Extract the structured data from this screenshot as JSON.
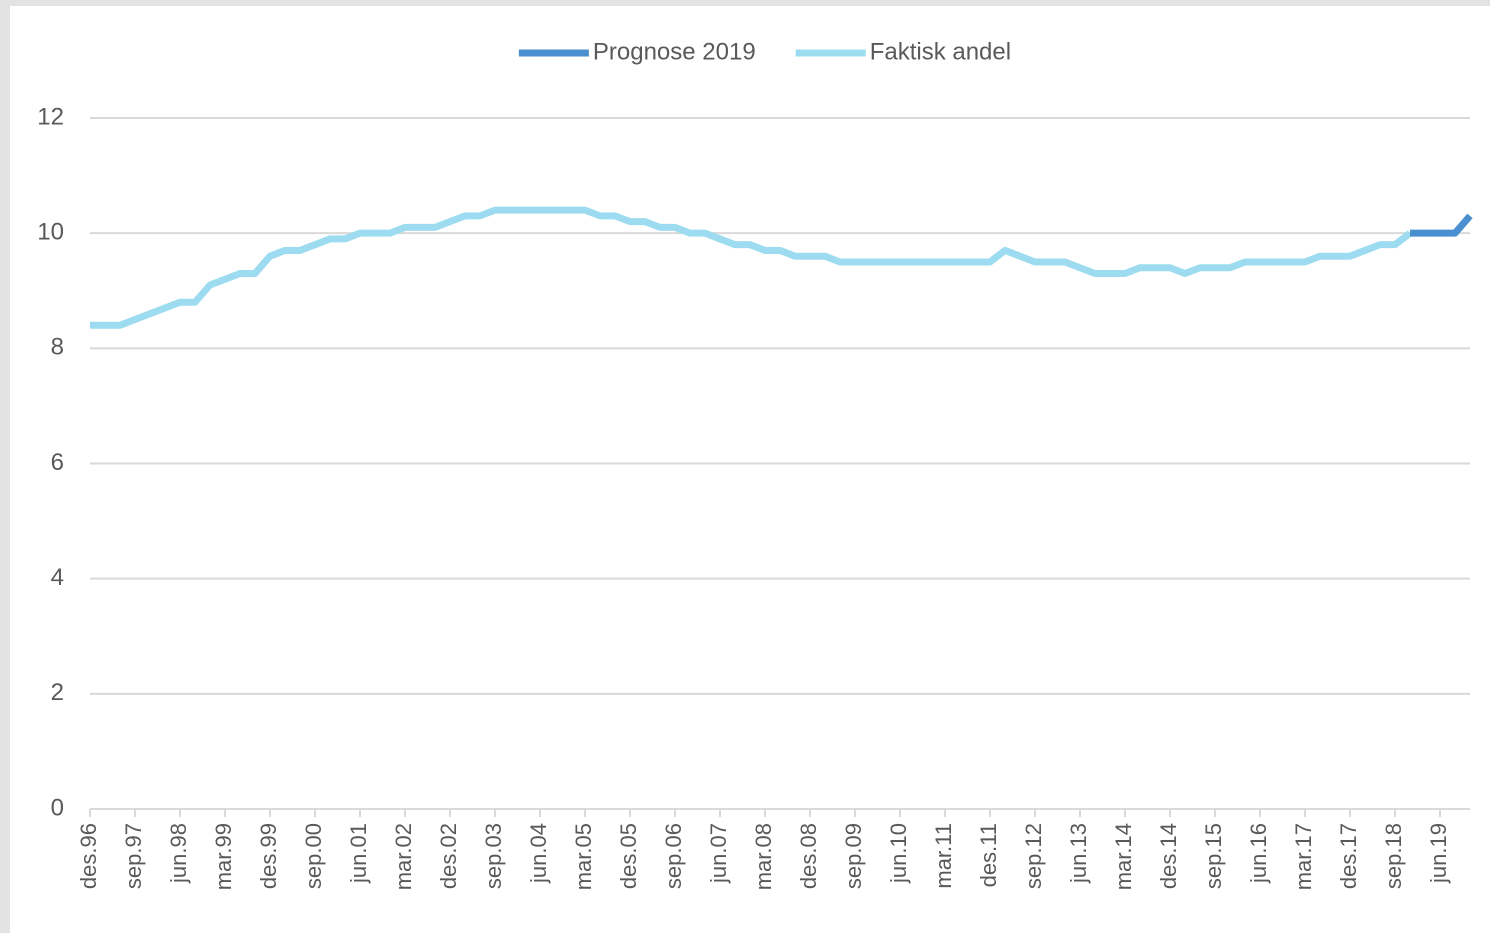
{
  "chart_data": {
    "type": "line",
    "categories": [
      "des.96",
      null,
      null,
      "sep.97",
      null,
      null,
      "jun.98",
      null,
      null,
      "mar.99",
      null,
      null,
      "des.99",
      null,
      null,
      "sep.00",
      null,
      null,
      "jun.01",
      null,
      null,
      "mar.02",
      null,
      null,
      "des.02",
      null,
      null,
      "sep.03",
      null,
      null,
      "jun.04",
      null,
      null,
      "mar.05",
      null,
      null,
      "des.05",
      null,
      null,
      "sep.06",
      null,
      null,
      "jun.07",
      null,
      null,
      "mar.08",
      null,
      null,
      "des.08",
      null,
      null,
      "sep.09",
      null,
      null,
      "jun.10",
      null,
      null,
      "mar.11",
      null,
      null,
      "des.11",
      null,
      null,
      "sep.12",
      null,
      null,
      "jun.13",
      null,
      null,
      "mar.14",
      null,
      null,
      "des.14",
      null,
      null,
      "sep.15",
      null,
      null,
      "jun.16",
      null,
      null,
      "mar.17",
      null,
      null,
      "des.17",
      null,
      null,
      "sep.18",
      null,
      null,
      "jun.19",
      null,
      null
    ],
    "series": [
      {
        "name": "Prognose 2019",
        "color": "#4a8fd0",
        "values": [
          null,
          null,
          null,
          null,
          null,
          null,
          null,
          null,
          null,
          null,
          null,
          null,
          null,
          null,
          null,
          null,
          null,
          null,
          null,
          null,
          null,
          null,
          null,
          null,
          null,
          null,
          null,
          null,
          null,
          null,
          null,
          null,
          null,
          null,
          null,
          null,
          null,
          null,
          null,
          null,
          null,
          null,
          null,
          null,
          null,
          null,
          null,
          null,
          null,
          null,
          null,
          null,
          null,
          null,
          null,
          null,
          null,
          null,
          null,
          null,
          null,
          null,
          null,
          null,
          null,
          null,
          null,
          null,
          null,
          null,
          null,
          null,
          null,
          null,
          null,
          null,
          null,
          null,
          null,
          null,
          null,
          null,
          null,
          null,
          null,
          null,
          null,
          null,
          10.0,
          10.0,
          10.0,
          10.0,
          10.3
        ]
      },
      {
        "name": "Faktisk andel",
        "color": "#9ddcf0",
        "values": [
          8.4,
          8.4,
          8.4,
          8.5,
          8.6,
          8.7,
          8.8,
          8.8,
          9.1,
          9.2,
          9.3,
          9.3,
          9.6,
          9.7,
          9.7,
          9.8,
          9.9,
          9.9,
          10.0,
          10.0,
          10.0,
          10.1,
          10.1,
          10.1,
          10.2,
          10.3,
          10.3,
          10.4,
          10.4,
          10.4,
          10.4,
          10.4,
          10.4,
          10.4,
          10.3,
          10.3,
          10.2,
          10.2,
          10.1,
          10.1,
          10.0,
          10.0,
          9.9,
          9.8,
          9.8,
          9.7,
          9.7,
          9.6,
          9.6,
          9.6,
          9.5,
          9.5,
          9.5,
          9.5,
          9.5,
          9.5,
          9.5,
          9.5,
          9.5,
          9.5,
          9.5,
          9.7,
          9.6,
          9.5,
          9.5,
          9.5,
          9.4,
          9.3,
          9.3,
          9.3,
          9.4,
          9.4,
          9.4,
          9.3,
          9.4,
          9.4,
          9.4,
          9.5,
          9.5,
          9.5,
          9.5,
          9.5,
          9.6,
          9.6,
          9.6,
          9.7,
          9.8,
          9.8,
          10.0,
          null,
          null,
          null,
          null
        ]
      }
    ],
    "ylim": [
      0,
      12
    ],
    "yticks": [
      0,
      2,
      4,
      6,
      8,
      10,
      12
    ],
    "grid": true,
    "legend": "top"
  }
}
